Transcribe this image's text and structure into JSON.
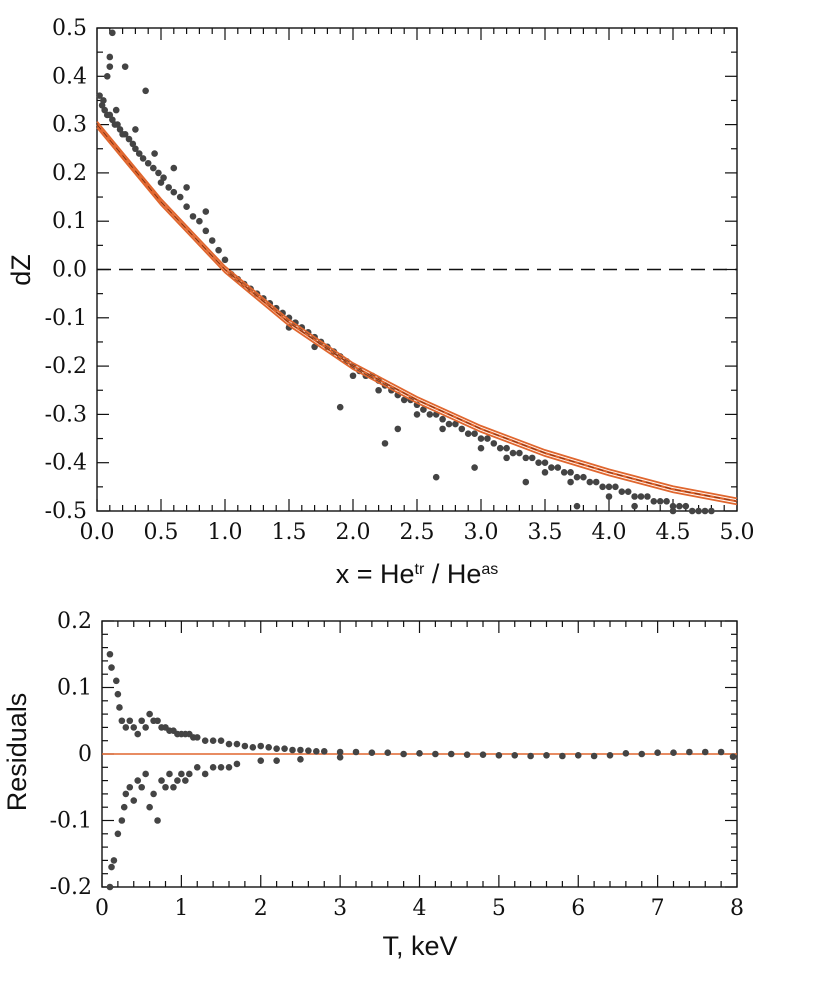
{
  "chart_data": [
    {
      "type": "scatter",
      "xlabel": "x = He",
      "xlabel_sup1": "tr",
      "xlabel_mid": " / He",
      "xlabel_sup2": "as",
      "ylabel": "dZ",
      "xlim": [
        0.0,
        5.0
      ],
      "ylim": [
        -0.5,
        0.5
      ],
      "x_ticks": [
        "0.0",
        "0.5",
        "1.0",
        "1.5",
        "2.0",
        "2.5",
        "3.0",
        "3.5",
        "4.0",
        "4.5",
        "5.0"
      ],
      "y_ticks": [
        "0.5",
        "0.4",
        "0.3",
        "0.2",
        "0.1",
        "0.0",
        "-0.1",
        "-0.2",
        "-0.3",
        "-0.4",
        "-0.5"
      ],
      "reference_line": {
        "y": 0.0,
        "style": "dashed"
      },
      "fit_curve": {
        "x": [
          0.0,
          0.25,
          0.5,
          0.75,
          1.0,
          1.5,
          2.0,
          2.5,
          3.0,
          3.5,
          4.0,
          4.5,
          5.0
        ],
        "y": [
          0.3,
          0.22,
          0.14,
          0.07,
          0.0,
          -0.11,
          -0.2,
          -0.27,
          -0.33,
          -0.38,
          -0.42,
          -0.455,
          -0.48
        ],
        "color": "#e0662e"
      },
      "points": [
        [
          0.02,
          0.36
        ],
        [
          0.04,
          0.34
        ],
        [
          0.06,
          0.33
        ],
        [
          0.08,
          0.32
        ],
        [
          0.1,
          0.32
        ],
        [
          0.12,
          0.31
        ],
        [
          0.14,
          0.3
        ],
        [
          0.16,
          0.3
        ],
        [
          0.18,
          0.29
        ],
        [
          0.2,
          0.28
        ],
        [
          0.22,
          0.28
        ],
        [
          0.25,
          0.27
        ],
        [
          0.28,
          0.26
        ],
        [
          0.3,
          0.25
        ],
        [
          0.33,
          0.24
        ],
        [
          0.36,
          0.23
        ],
        [
          0.4,
          0.22
        ],
        [
          0.44,
          0.21
        ],
        [
          0.48,
          0.2
        ],
        [
          0.52,
          0.19
        ],
        [
          0.56,
          0.17
        ],
        [
          0.6,
          0.16
        ],
        [
          0.65,
          0.15
        ],
        [
          0.7,
          0.13
        ],
        [
          0.75,
          0.11
        ],
        [
          0.8,
          0.1
        ],
        [
          0.85,
          0.08
        ],
        [
          0.9,
          0.06
        ],
        [
          0.95,
          0.04
        ],
        [
          1.0,
          0.02
        ],
        [
          0.12,
          0.49
        ],
        [
          0.1,
          0.44
        ],
        [
          0.1,
          0.42
        ],
        [
          0.08,
          0.4
        ],
        [
          0.22,
          0.42
        ],
        [
          0.38,
          0.37
        ],
        [
          0.05,
          0.35
        ],
        [
          0.15,
          0.33
        ],
        [
          0.3,
          0.29
        ],
        [
          0.45,
          0.24
        ],
        [
          0.6,
          0.21
        ],
        [
          0.5,
          0.18
        ],
        [
          0.7,
          0.17
        ],
        [
          0.85,
          0.12
        ],
        [
          1.05,
          -0.01
        ],
        [
          1.1,
          -0.02
        ],
        [
          1.15,
          -0.03
        ],
        [
          1.2,
          -0.04
        ],
        [
          1.25,
          -0.05
        ],
        [
          1.3,
          -0.06
        ],
        [
          1.35,
          -0.07
        ],
        [
          1.4,
          -0.08
        ],
        [
          1.45,
          -0.09
        ],
        [
          1.5,
          -0.1
        ],
        [
          1.55,
          -0.11
        ],
        [
          1.6,
          -0.12
        ],
        [
          1.65,
          -0.13
        ],
        [
          1.7,
          -0.14
        ],
        [
          1.75,
          -0.15
        ],
        [
          1.8,
          -0.16
        ],
        [
          1.85,
          -0.17
        ],
        [
          1.9,
          -0.18
        ],
        [
          1.95,
          -0.19
        ],
        [
          2.0,
          -0.2
        ],
        [
          2.05,
          -0.21
        ],
        [
          2.1,
          -0.22
        ],
        [
          2.15,
          -0.22
        ],
        [
          2.2,
          -0.23
        ],
        [
          2.25,
          -0.24
        ],
        [
          2.3,
          -0.25
        ],
        [
          2.35,
          -0.26
        ],
        [
          2.4,
          -0.27
        ],
        [
          2.45,
          -0.27
        ],
        [
          2.5,
          -0.28
        ],
        [
          2.55,
          -0.29
        ],
        [
          2.6,
          -0.3
        ],
        [
          2.65,
          -0.3
        ],
        [
          2.7,
          -0.31
        ],
        [
          2.75,
          -0.32
        ],
        [
          2.8,
          -0.32
        ],
        [
          2.85,
          -0.33
        ],
        [
          2.9,
          -0.34
        ],
        [
          2.95,
          -0.34
        ],
        [
          3.0,
          -0.35
        ],
        [
          3.05,
          -0.35
        ],
        [
          3.1,
          -0.36
        ],
        [
          3.15,
          -0.37
        ],
        [
          3.2,
          -0.37
        ],
        [
          3.25,
          -0.38
        ],
        [
          3.3,
          -0.38
        ],
        [
          3.35,
          -0.39
        ],
        [
          3.4,
          -0.39
        ],
        [
          3.45,
          -0.4
        ],
        [
          3.5,
          -0.4
        ],
        [
          3.55,
          -0.41
        ],
        [
          3.6,
          -0.41
        ],
        [
          3.65,
          -0.42
        ],
        [
          3.7,
          -0.42
        ],
        [
          3.75,
          -0.43
        ],
        [
          3.8,
          -0.43
        ],
        [
          3.85,
          -0.44
        ],
        [
          3.9,
          -0.44
        ],
        [
          3.95,
          -0.45
        ],
        [
          4.0,
          -0.45
        ],
        [
          4.05,
          -0.45
        ],
        [
          4.1,
          -0.46
        ],
        [
          4.15,
          -0.46
        ],
        [
          4.2,
          -0.47
        ],
        [
          4.25,
          -0.47
        ],
        [
          4.3,
          -0.47
        ],
        [
          4.35,
          -0.48
        ],
        [
          4.4,
          -0.48
        ],
        [
          4.45,
          -0.48
        ],
        [
          4.5,
          -0.49
        ],
        [
          4.55,
          -0.49
        ],
        [
          4.6,
          -0.49
        ],
        [
          4.65,
          -0.5
        ],
        [
          4.7,
          -0.5
        ],
        [
          4.75,
          -0.5
        ],
        [
          4.8,
          -0.5
        ],
        [
          1.9,
          -0.285
        ],
        [
          2.25,
          -0.36
        ],
        [
          2.35,
          -0.33
        ],
        [
          2.65,
          -0.43
        ],
        [
          2.95,
          -0.41
        ],
        [
          3.35,
          -0.44
        ],
        [
          3.75,
          -0.49
        ],
        [
          1.5,
          -0.12
        ],
        [
          2.0,
          -0.22
        ],
        [
          2.5,
          -0.3
        ],
        [
          3.0,
          -0.37
        ],
        [
          3.5,
          -0.42
        ],
        [
          4.0,
          -0.47
        ],
        [
          4.5,
          -0.5
        ],
        [
          1.7,
          -0.16
        ],
        [
          2.2,
          -0.25
        ],
        [
          2.7,
          -0.33
        ],
        [
          3.2,
          -0.39
        ],
        [
          3.7,
          -0.44
        ],
        [
          4.2,
          -0.49
        ]
      ]
    },
    {
      "type": "scatter",
      "xlabel": "T, keV",
      "ylabel": "Residuals",
      "xlim": [
        0,
        8
      ],
      "ylim": [
        -0.2,
        0.2
      ],
      "x_ticks": [
        "0",
        "1",
        "2",
        "3",
        "4",
        "5",
        "6",
        "7",
        "8"
      ],
      "y_ticks": [
        "0.2",
        "0.1",
        "0",
        "-0.1",
        "-0.2"
      ],
      "reference_line": {
        "y": 0.0,
        "style": "solid",
        "color": "#e0662e"
      },
      "points": [
        [
          0.1,
          0.15
        ],
        [
          0.12,
          0.13
        ],
        [
          0.1,
          -0.2
        ],
        [
          0.12,
          -0.17
        ],
        [
          0.15,
          -0.16
        ],
        [
          0.18,
          0.11
        ],
        [
          0.2,
          0.09
        ],
        [
          0.2,
          -0.12
        ],
        [
          0.22,
          0.07
        ],
        [
          0.25,
          -0.1
        ],
        [
          0.25,
          0.05
        ],
        [
          0.28,
          -0.08
        ],
        [
          0.3,
          0.04
        ],
        [
          0.3,
          -0.06
        ],
        [
          0.35,
          0.05
        ],
        [
          0.35,
          -0.05
        ],
        [
          0.4,
          0.04
        ],
        [
          0.4,
          -0.07
        ],
        [
          0.45,
          0.03
        ],
        [
          0.45,
          -0.04
        ],
        [
          0.5,
          0.05
        ],
        [
          0.5,
          -0.05
        ],
        [
          0.55,
          0.04
        ],
        [
          0.55,
          -0.03
        ],
        [
          0.6,
          0.06
        ],
        [
          0.6,
          -0.08
        ],
        [
          0.65,
          0.05
        ],
        [
          0.65,
          -0.06
        ],
        [
          0.7,
          0.05
        ],
        [
          0.7,
          -0.1
        ],
        [
          0.75,
          0.04
        ],
        [
          0.75,
          -0.04
        ],
        [
          0.8,
          0.04
        ],
        [
          0.8,
          -0.05
        ],
        [
          0.85,
          0.035
        ],
        [
          0.85,
          -0.03
        ],
        [
          0.9,
          0.035
        ],
        [
          0.9,
          -0.05
        ],
        [
          0.95,
          0.03
        ],
        [
          0.95,
          -0.04
        ],
        [
          1.0,
          0.03
        ],
        [
          1.0,
          -0.03
        ],
        [
          1.05,
          0.03
        ],
        [
          1.05,
          -0.04
        ],
        [
          1.1,
          0.03
        ],
        [
          1.1,
          -0.03
        ],
        [
          1.15,
          0.025
        ],
        [
          1.2,
          0.025
        ],
        [
          1.2,
          -0.02
        ],
        [
          1.3,
          0.02
        ],
        [
          1.3,
          -0.03
        ],
        [
          1.4,
          0.02
        ],
        [
          1.4,
          -0.02
        ],
        [
          1.5,
          0.02
        ],
        [
          1.5,
          -0.02
        ],
        [
          1.6,
          0.015
        ],
        [
          1.6,
          -0.02
        ],
        [
          1.7,
          0.015
        ],
        [
          1.7,
          -0.015
        ],
        [
          1.8,
          0.012
        ],
        [
          1.9,
          0.01
        ],
        [
          2.0,
          0.012
        ],
        [
          2.0,
          -0.01
        ],
        [
          2.1,
          0.01
        ],
        [
          2.2,
          0.008
        ],
        [
          2.3,
          0.008
        ],
        [
          2.4,
          0.006
        ],
        [
          2.5,
          0.006
        ],
        [
          2.6,
          0.005
        ],
        [
          2.7,
          0.004
        ],
        [
          2.8,
          0.004
        ],
        [
          3.0,
          0.003
        ],
        [
          3.2,
          0.003
        ],
        [
          3.4,
          0.002
        ],
        [
          3.6,
          0.002
        ],
        [
          3.8,
          0.0
        ],
        [
          4.0,
          0.001
        ],
        [
          4.2,
          0.0
        ],
        [
          4.4,
          0.0
        ],
        [
          4.6,
          -0.001
        ],
        [
          4.8,
          -0.001
        ],
        [
          5.0,
          -0.002
        ],
        [
          5.2,
          -0.002
        ],
        [
          5.4,
          -0.003
        ],
        [
          5.6,
          -0.002
        ],
        [
          5.8,
          -0.003
        ],
        [
          6.0,
          -0.002
        ],
        [
          6.2,
          -0.003
        ],
        [
          6.4,
          -0.002
        ],
        [
          6.6,
          0.001
        ],
        [
          6.8,
          0.0
        ],
        [
          7.0,
          0.002
        ],
        [
          7.2,
          0.002
        ],
        [
          7.4,
          0.003
        ],
        [
          7.6,
          0.003
        ],
        [
          7.8,
          0.003
        ],
        [
          7.95,
          -0.004
        ],
        [
          2.2,
          -0.01
        ],
        [
          2.5,
          -0.008
        ],
        [
          3.0,
          -0.005
        ]
      ]
    }
  ],
  "colors": {
    "points": "#444444",
    "fit": "#e0662e"
  }
}
